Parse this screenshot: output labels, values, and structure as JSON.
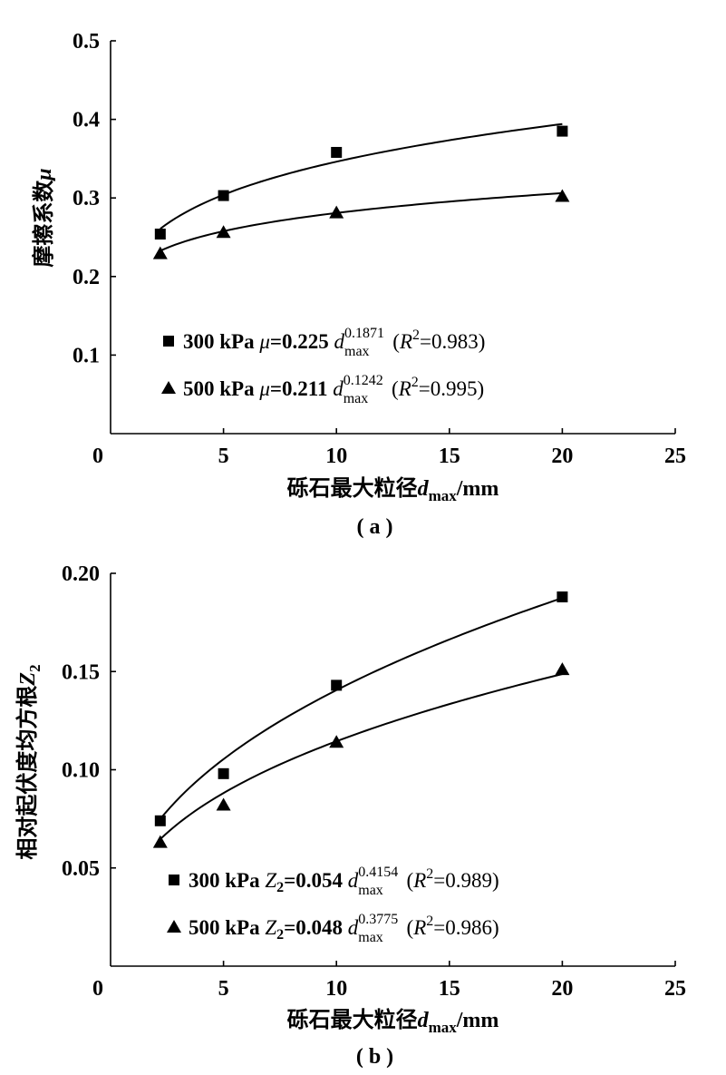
{
  "chart_data": [
    {
      "type": "scatter",
      "panel_label": "( a )",
      "xlabel": {
        "main": "砾石最大粒径",
        "var": "d",
        "sub": "max",
        "unit": "/mm"
      },
      "ylabel": {
        "main": "摩擦系数",
        "var": "μ"
      },
      "xlim": [
        0,
        25
      ],
      "ylim": [
        0,
        0.5
      ],
      "xticks": [
        0,
        5,
        10,
        15,
        20,
        25
      ],
      "xtick_labels": [
        "0",
        "5",
        "10",
        "15",
        "20",
        "25"
      ],
      "yticks": [
        0.1,
        0.2,
        0.3,
        0.4,
        0.5
      ],
      "ytick_labels": [
        "0.1",
        "0.2",
        "0.3",
        "0.4",
        "0.5"
      ],
      "series": [
        {
          "name": "300 kPa",
          "marker": "square",
          "x": [
            2.2,
            5,
            10,
            20
          ],
          "y": [
            0.254,
            0.303,
            0.358,
            0.385
          ],
          "fit": {
            "a": 0.225,
            "b": 0.1871,
            "xrange": [
              2.2,
              20
            ]
          },
          "legend": {
            "pressure": "300 kPa",
            "var": "μ",
            "eq": "=0.225 ",
            "d": "d",
            "exp": "0.1871",
            "sub": "max",
            "r_open": " (",
            "r": "R",
            "r_exp": "2",
            "r_val": "=0.983)"
          }
        },
        {
          "name": "500 kPa",
          "marker": "triangle",
          "x": [
            2.2,
            5,
            10,
            20
          ],
          "y": [
            0.229,
            0.256,
            0.281,
            0.302
          ],
          "fit": {
            "a": 0.211,
            "b": 0.1242,
            "xrange": [
              2.2,
              20
            ]
          },
          "legend": {
            "pressure": "500 kPa",
            "var": "μ",
            "eq": "=0.211 ",
            "d": "d",
            "exp": "0.1242",
            "sub": "max",
            "r_open": " (",
            "r": "R",
            "r_exp": "2",
            "r_val": "=0.995)"
          }
        }
      ]
    },
    {
      "type": "scatter",
      "panel_label": "( b )",
      "xlabel": {
        "main": "砾石最大粒径",
        "var": "d",
        "sub": "max",
        "unit": "/mm"
      },
      "ylabel": {
        "main": "相对起伏度均方根",
        "var": "Z",
        "sub": "2"
      },
      "xlim": [
        0,
        25
      ],
      "ylim": [
        0,
        0.2
      ],
      "xticks": [
        0,
        5,
        10,
        15,
        20,
        25
      ],
      "xtick_labels": [
        "0",
        "5",
        "10",
        "15",
        "20",
        "25"
      ],
      "yticks": [
        0.05,
        0.1,
        0.15,
        0.2
      ],
      "ytick_labels": [
        "0.05",
        "0.10",
        "0.15",
        "0.20"
      ],
      "series": [
        {
          "name": "300 kPa",
          "marker": "square",
          "x": [
            2.2,
            5,
            10,
            20
          ],
          "y": [
            0.074,
            0.098,
            0.143,
            0.188
          ],
          "fit": {
            "a": 0.054,
            "b": 0.4154,
            "xrange": [
              2.2,
              20
            ]
          },
          "legend": {
            "pressure": "300 kPa",
            "var": "Z",
            "var_sub": "2",
            "eq": "=0.054 ",
            "d": "d",
            "exp": "0.4154",
            "sub": "max",
            "r_open": " (",
            "r": "R",
            "r_exp": "2",
            "r_val": "=0.989)"
          }
        },
        {
          "name": "500 kPa",
          "marker": "triangle",
          "x": [
            2.2,
            5,
            10,
            20
          ],
          "y": [
            0.063,
            0.082,
            0.114,
            0.151
          ],
          "fit": {
            "a": 0.048,
            "b": 0.3775,
            "xrange": [
              2.2,
              20
            ]
          },
          "legend": {
            "pressure": "500 kPa",
            "var": "Z",
            "var_sub": "2",
            "eq": "=0.048 ",
            "d": "d",
            "exp": "0.3775",
            "sub": "max",
            "r_open": " (",
            "r": "R",
            "r_exp": "2",
            "r_val": "=0.986)"
          }
        }
      ]
    }
  ]
}
